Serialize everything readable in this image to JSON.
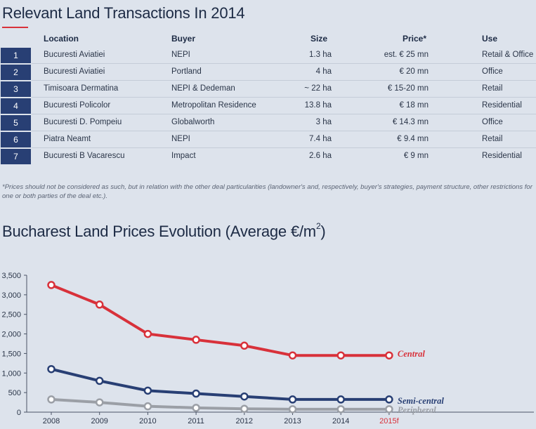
{
  "transactions": {
    "title": "Relevant Land Transactions In 2014",
    "headers": {
      "location": "Location",
      "buyer": "Buyer",
      "size": "Size",
      "price": "Price*",
      "use": "Use"
    },
    "rows": [
      {
        "num": "1",
        "location": "Bucuresti Aviatiei",
        "buyer": "NEPI",
        "size": "1.3 ha",
        "price": "est. € 25 mn",
        "use": "Retail & Office"
      },
      {
        "num": "2",
        "location": "Bucuresti Aviatiei",
        "buyer": "Portland",
        "size": "4 ha",
        "price": "€ 20 mn",
        "use": "Office"
      },
      {
        "num": "3",
        "location": "Timisoara Dermatina",
        "buyer": "NEPI & Dedeman",
        "size": "~ 22 ha",
        "price": "€ 15-20 mn",
        "use": "Retail"
      },
      {
        "num": "4",
        "location": "Bucuresti Policolor",
        "buyer": "Metropolitan Residence",
        "size": "13.8 ha",
        "price": "€ 18 mn",
        "use": "Residential"
      },
      {
        "num": "5",
        "location": "Bucuresti D. Pompeiu",
        "buyer": "Globalworth",
        "size": "3 ha",
        "price": "€ 14.3 mn",
        "use": "Office"
      },
      {
        "num": "6",
        "location": "Piatra Neamt",
        "buyer": "NEPI",
        "size": "7.4 ha",
        "price": "€ 9.4 mn",
        "use": "Retail"
      },
      {
        "num": "7",
        "location": "Bucuresti B Vacarescu",
        "buyer": "Impact",
        "size": "2.6 ha",
        "price": "€ 9 mn",
        "use": "Residential"
      }
    ],
    "footnote": "*Prices should not be considered as such, but in relation with the other deal particularities (landowner's and, respectively, buyer's strategies, payment structure, other restrictions for one or both parties of the deal etc.).",
    "accent": "#d8313a",
    "number_box_color": "#283f74"
  },
  "chart_title": {
    "main": "Bucharest Land Prices Evolution (Average €/m",
    "sup": "2",
    "close": ")"
  },
  "chart_data": {
    "type": "line",
    "title": "Bucharest Land Prices Evolution (Average €/m2)",
    "categories": [
      "2008",
      "2009",
      "2010",
      "2011",
      "2012",
      "2013",
      "2014",
      "2015f"
    ],
    "yticks": [
      "0",
      "500",
      "1,000",
      "1,500",
      "2,000",
      "2,500",
      "3,000",
      "3,500"
    ],
    "ylim": [
      0,
      3500
    ],
    "grid": false,
    "series": [
      {
        "name": "Central",
        "color": "#d8313a",
        "values": [
          3250,
          2750,
          2000,
          1850,
          1700,
          1450,
          1450,
          1450
        ]
      },
      {
        "name": "Semi-central",
        "color": "#283f74",
        "values": [
          1100,
          800,
          550,
          475,
          400,
          325,
          325,
          325
        ]
      },
      {
        "name": "Peripheral",
        "color": "#9b9fa6",
        "values": [
          325,
          250,
          150,
          110,
          85,
          75,
          75,
          75
        ]
      }
    ]
  }
}
